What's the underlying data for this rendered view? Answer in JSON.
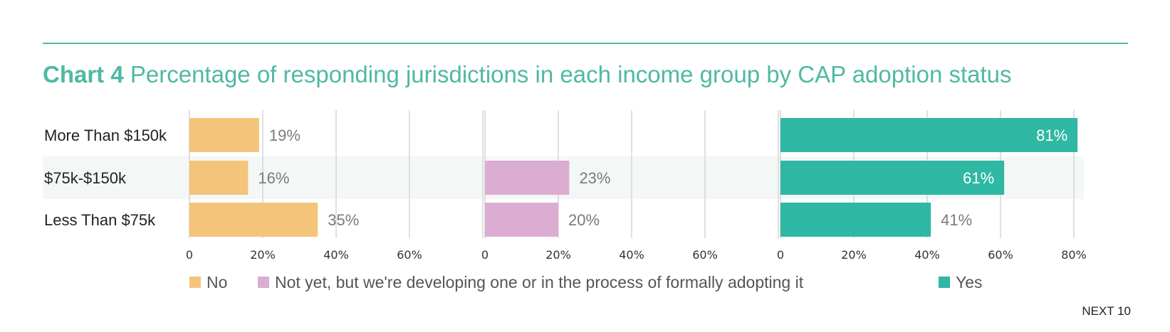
{
  "title": {
    "lead": "Chart 4",
    "text": "Percentage of responding jurisdictions in each income group by CAP adoption status"
  },
  "footer": "NEXT 10",
  "chart_data": {
    "type": "bar",
    "orientation": "horizontal",
    "layout": "small-multiples",
    "categories": [
      "More Than $150k",
      "$75k-$150k",
      "Less Than $75k"
    ],
    "series": [
      {
        "name": "No",
        "color": "#f4c47a",
        "values": [
          19,
          16,
          35
        ],
        "value_labels": [
          "19%",
          "16%",
          "35%"
        ],
        "ticks": [
          "0",
          "20%",
          "40%",
          "60%"
        ],
        "xlim": [
          0,
          80
        ]
      },
      {
        "name": "Not yet, but we're developing one or in the process of formally adopting it",
        "color": "#dcadd2",
        "values": [
          null,
          23,
          20
        ],
        "value_labels": [
          "",
          "23%",
          "20%"
        ],
        "ticks": [
          "0",
          "20%",
          "40%",
          "60%"
        ],
        "xlim": [
          0,
          80
        ]
      },
      {
        "name": "Yes",
        "color": "#2fb8a4",
        "values": [
          81,
          61,
          41
        ],
        "value_labels": [
          "81%",
          "61%",
          "41%"
        ],
        "ticks": [
          "0",
          "20%",
          "40%",
          "60%",
          "80%"
        ],
        "xlim": [
          0,
          85
        ]
      }
    ],
    "legend_position": "bottom",
    "grid": true
  }
}
